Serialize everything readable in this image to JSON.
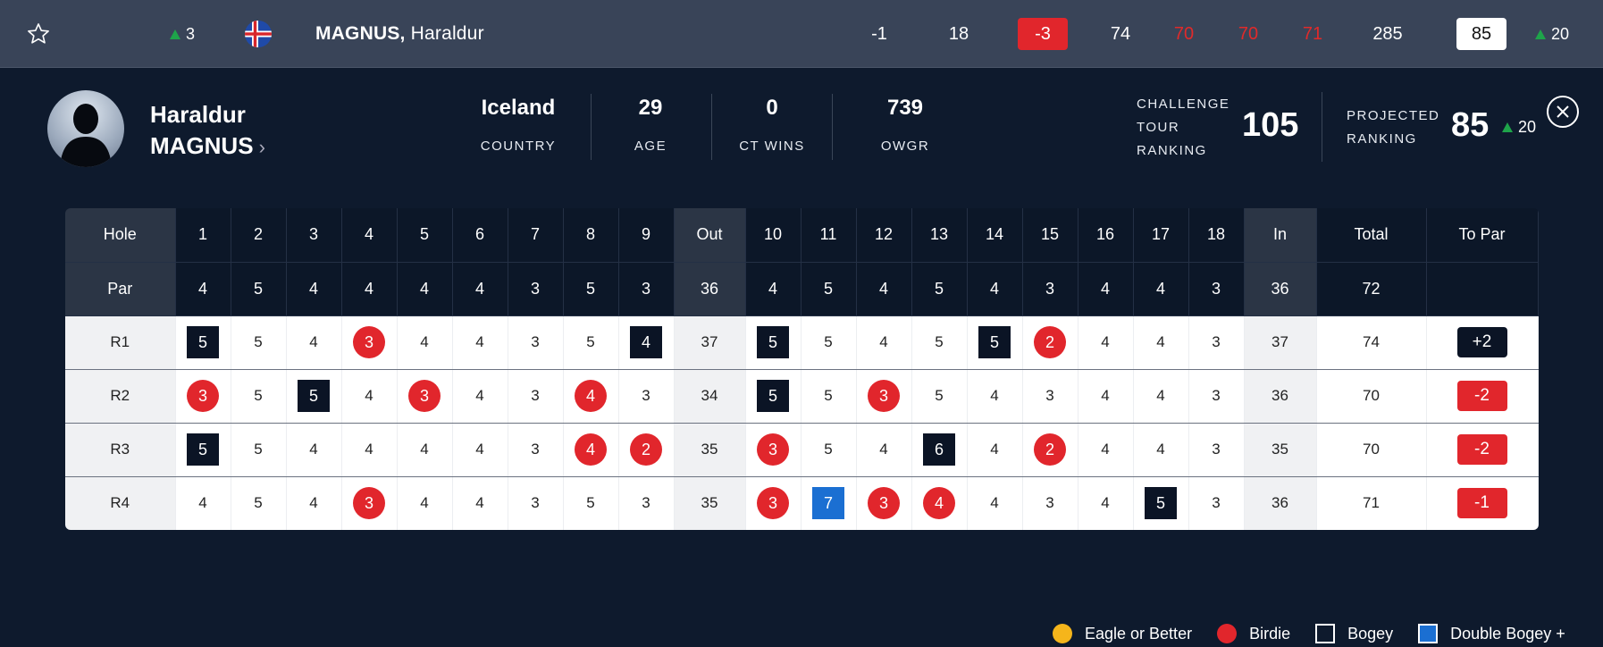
{
  "top": {
    "movement": "3",
    "last_name": "MAGNUS,",
    "first_name": "Haraldur",
    "today": "-1",
    "thru": "18",
    "to_par": "-3",
    "r1": "74",
    "r2": "70",
    "r3": "70",
    "r4": "71",
    "total": "285",
    "projected": "85",
    "projected_move": "20"
  },
  "player": {
    "first": "Haraldur",
    "last": "MAGNUS",
    "chevron": "›",
    "country": "Iceland",
    "country_label": "COUNTRY",
    "age": "29",
    "age_label": "AGE",
    "wins": "0",
    "wins_label": "CT WINS",
    "owgr": "739",
    "owgr_label": "OWGR",
    "ct_rank_label_1": "CHALLENGE",
    "ct_rank_label_2": "TOUR",
    "ct_rank_label_3": "RANKING",
    "ct_rank": "105",
    "proj_label_1": "PROJECTED",
    "proj_label_2": "RANKING",
    "proj_rank": "85",
    "proj_move": "20"
  },
  "scorecard": {
    "hole_label": "Hole",
    "par_label": "Par",
    "out_label": "Out",
    "in_label": "In",
    "total_label": "Total",
    "to_par_label": "To Par",
    "holes_front": [
      "1",
      "2",
      "3",
      "4",
      "5",
      "6",
      "7",
      "8",
      "9"
    ],
    "holes_back": [
      "10",
      "11",
      "12",
      "13",
      "14",
      "15",
      "16",
      "17",
      "18"
    ],
    "par_front": [
      "4",
      "5",
      "4",
      "4",
      "4",
      "4",
      "3",
      "5",
      "3"
    ],
    "par_back": [
      "4",
      "5",
      "4",
      "5",
      "4",
      "3",
      "4",
      "4",
      "3"
    ],
    "par_out": "36",
    "par_in": "36",
    "par_total": "72",
    "rounds": [
      {
        "label": "R1",
        "front": [
          "5",
          "5",
          "4",
          "3",
          "4",
          "4",
          "3",
          "5",
          "4"
        ],
        "out": "37",
        "back": [
          "5",
          "5",
          "4",
          "5",
          "5",
          "2",
          "4",
          "4",
          "3"
        ],
        "in": "37",
        "total": "74",
        "to_par": "+2"
      },
      {
        "label": "R2",
        "front": [
          "3",
          "5",
          "5",
          "4",
          "3",
          "4",
          "3",
          "4",
          "3"
        ],
        "out": "34",
        "back": [
          "5",
          "5",
          "3",
          "5",
          "4",
          "3",
          "4",
          "4",
          "3"
        ],
        "in": "36",
        "total": "70",
        "to_par": "-2"
      },
      {
        "label": "R3",
        "front": [
          "5",
          "5",
          "4",
          "4",
          "4",
          "4",
          "3",
          "4",
          "2"
        ],
        "out": "35",
        "back": [
          "3",
          "5",
          "4",
          "6",
          "4",
          "2",
          "4",
          "4",
          "3"
        ],
        "in": "35",
        "total": "70",
        "to_par": "-2"
      },
      {
        "label": "R4",
        "front": [
          "4",
          "5",
          "4",
          "3",
          "4",
          "4",
          "3",
          "5",
          "3"
        ],
        "out": "35",
        "back": [
          "3",
          "7",
          "3",
          "4",
          "4",
          "3",
          "4",
          "5",
          "3"
        ],
        "in": "36",
        "total": "71",
        "to_par": "-1"
      }
    ]
  },
  "legend": {
    "eagle": "Eagle or Better",
    "birdie": "Birdie",
    "bogey": "Bogey",
    "dbogey": "Double Bogey +"
  },
  "colors": {
    "birdie": "#e1262c",
    "bogey": "#0b1425",
    "double_bogey": "#1b6fd2",
    "eagle": "#f5b51b",
    "movement_up": "#1ea44a"
  }
}
